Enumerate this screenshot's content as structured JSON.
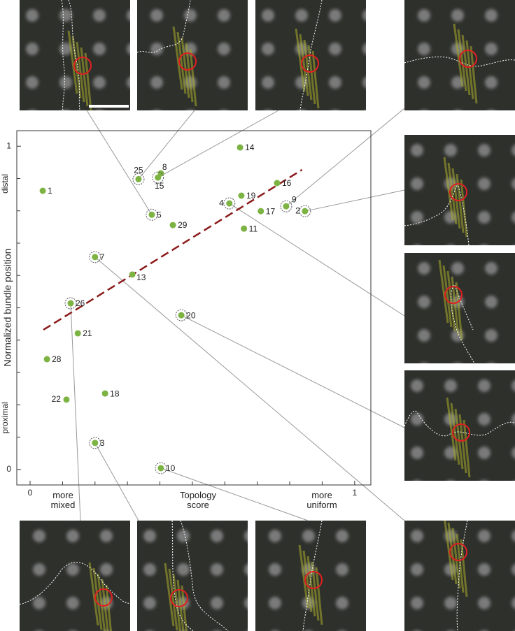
{
  "chart_data": {
    "type": "scatter",
    "x_label": "Topology score",
    "y_label": "Normalized bundle position",
    "x_low_label": "more mixed",
    "x_high_label": "more uniform",
    "y_low_label": "proximal",
    "y_high_label": "distal",
    "xlim": [
      -0.041,
      1.05
    ],
    "ylim": [
      -0.048,
      1.048
    ],
    "xticks": [
      0,
      1
    ],
    "yticks": [
      0,
      1
    ],
    "x_minor_ticks": [
      0.1,
      0.2,
      0.3,
      0.4,
      0.5,
      0.6,
      0.7,
      0.8,
      0.9
    ],
    "y_minor_ticks": [
      0.1,
      0.2,
      0.3,
      0.4,
      0.5,
      0.6,
      0.7,
      0.8,
      0.9
    ],
    "color": "#7cb342",
    "point_labels": [
      "1",
      "14",
      "25",
      "8",
      "15",
      "16",
      "19",
      "4",
      "9",
      "2",
      "17",
      "5",
      "29",
      "11",
      "7",
      "13",
      "26",
      "20",
      "21",
      "28",
      "22",
      "18",
      "3",
      "10"
    ],
    "x": [
      0.039,
      0.647,
      0.334,
      0.403,
      0.394,
      0.761,
      0.651,
      0.614,
      0.789,
      0.847,
      0.711,
      0.375,
      0.44,
      0.659,
      0.2,
      0.315,
      0.125,
      0.466,
      0.147,
      0.052,
      0.112,
      0.231,
      0.2,
      0.403
    ],
    "values": [
      0.862,
      0.996,
      0.898,
      0.916,
      0.903,
      0.886,
      0.847,
      0.823,
      0.814,
      0.799,
      0.799,
      0.788,
      0.756,
      0.745,
      0.657,
      0.603,
      0.514,
      0.477,
      0.421,
      0.341,
      0.216,
      0.235,
      0.082,
      0.004
    ],
    "highlighted": [
      false,
      false,
      true,
      false,
      true,
      false,
      false,
      true,
      true,
      true,
      false,
      true,
      false,
      false,
      true,
      false,
      true,
      true,
      false,
      false,
      false,
      false,
      true,
      true
    ],
    "trend_line": {
      "x": [
        0.041,
        0.838
      ],
      "values": [
        0.432,
        0.927
      ],
      "color": "#8b1a1a"
    }
  }
}
